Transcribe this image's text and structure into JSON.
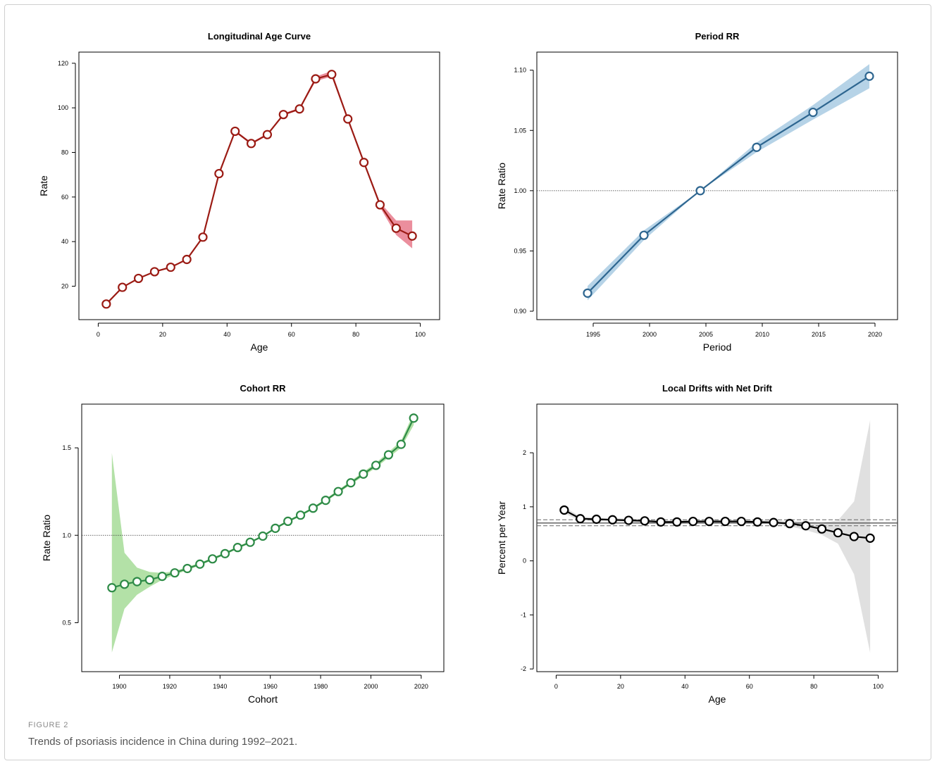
{
  "figure": {
    "label": "FIGURE 2",
    "caption": "Trends of psoriasis incidence in China during 1992–2021."
  },
  "chart_data": [
    {
      "type": "line",
      "title": "Longitudinal Age Curve",
      "xlabel": "Age",
      "ylabel": "Rate",
      "xlim": [
        -6,
        106
      ],
      "ylim": [
        5,
        125
      ],
      "xticks": [
        0,
        20,
        40,
        60,
        80,
        100
      ],
      "yticks": [
        20,
        40,
        60,
        80,
        100,
        120
      ],
      "tick_labels_x": [
        "0",
        "20",
        "40",
        "60",
        "80",
        "100"
      ],
      "tick_labels_y": [
        "20",
        "40",
        "60",
        "80",
        "100",
        "120"
      ],
      "color": "#9b1b14",
      "band_color": "#e87a8c",
      "series": [
        {
          "x": [
            2.5,
            7.5,
            12.5,
            17.5,
            22.5,
            27.5,
            32.5,
            37.5,
            42.5,
            47.5,
            52.5,
            57.5,
            62.5,
            67.5,
            72.5,
            77.5,
            82.5,
            87.5,
            92.5,
            97.5
          ],
          "values": [
            12,
            19.5,
            23.5,
            26.5,
            28.5,
            32,
            42,
            70.5,
            89.5,
            84,
            88,
            97,
            99.5,
            113,
            115,
            95,
            75.5,
            56.5,
            46,
            42.5
          ],
          "lower": [
            12,
            19.3,
            23.2,
            26.2,
            28.2,
            31.7,
            41.6,
            70,
            89,
            83.5,
            87.5,
            96.5,
            99,
            112,
            114,
            94.3,
            74.8,
            55.4,
            43,
            37
          ],
          "upper": [
            12,
            19.7,
            23.8,
            26.8,
            28.8,
            32.3,
            42.4,
            71,
            90,
            84.5,
            88.5,
            97.5,
            100,
            114,
            116.5,
            95.7,
            76.2,
            57.6,
            49.5,
            49.5
          ]
        }
      ]
    },
    {
      "type": "line",
      "title": "Period RR",
      "xlabel": "Period",
      "ylabel": "Rate Ratio",
      "xlim": [
        1990,
        2022
      ],
      "ylim": [
        0.893,
        1.115
      ],
      "xticks": [
        1995,
        2000,
        2005,
        2010,
        2015,
        2020
      ],
      "yticks": [
        0.9,
        0.95,
        1.0,
        1.05,
        1.1
      ],
      "tick_labels_x": [
        "1995",
        "2000",
        "2005",
        "2010",
        "2015",
        "2020"
      ],
      "tick_labels_y": [
        "0.90",
        "0.95",
        "1.00",
        "1.05",
        "1.10"
      ],
      "reference_line": 1.0,
      "color": "#2e6690",
      "band_color": "#a9cbe3",
      "series": [
        {
          "x": [
            1994.5,
            1999.5,
            2004.5,
            2009.5,
            2014.5,
            2019.5
          ],
          "values": [
            0.915,
            0.963,
            1.0,
            1.036,
            1.065,
            1.095
          ],
          "lower": [
            0.909,
            0.959,
            1.0,
            1.032,
            1.059,
            1.085
          ],
          "upper": [
            0.921,
            0.967,
            1.0,
            1.04,
            1.071,
            1.105
          ]
        }
      ]
    },
    {
      "type": "line",
      "title": "Cohort RR",
      "xlabel": "Cohort",
      "ylabel": "Rate Ratio",
      "xlim": [
        1885,
        2029
      ],
      "ylim": [
        0.22,
        1.75
      ],
      "xticks": [
        1900,
        1920,
        1940,
        1960,
        1980,
        2000,
        2020
      ],
      "yticks": [
        0.5,
        1.0,
        1.5
      ],
      "tick_labels_x": [
        "1900",
        "1920",
        "1940",
        "1960",
        "1980",
        "2000",
        "2020"
      ],
      "tick_labels_y": [
        "0.5",
        "1.0",
        "1.5"
      ],
      "reference_line": 1.0,
      "color": "#2e8b47",
      "band_color": "#a6dc98",
      "series": [
        {
          "x": [
            1897,
            1902,
            1907,
            1912,
            1917,
            1922,
            1927,
            1932,
            1937,
            1942,
            1947,
            1952,
            1957,
            1962,
            1967,
            1972,
            1977,
            1982,
            1987,
            1992,
            1997,
            2002,
            2007,
            2012,
            2017
          ],
          "values": [
            0.7,
            0.72,
            0.735,
            0.745,
            0.765,
            0.785,
            0.81,
            0.835,
            0.865,
            0.895,
            0.93,
            0.96,
            0.995,
            1.04,
            1.08,
            1.115,
            1.155,
            1.2,
            1.25,
            1.3,
            1.35,
            1.4,
            1.46,
            1.52,
            1.67
          ],
          "lower": [
            0.33,
            0.58,
            0.66,
            0.705,
            0.745,
            0.775,
            0.8,
            0.828,
            0.858,
            0.888,
            0.923,
            0.954,
            0.99,
            1.034,
            1.073,
            1.108,
            1.148,
            1.192,
            1.241,
            1.29,
            1.338,
            1.386,
            1.444,
            1.5,
            1.63
          ],
          "upper": [
            1.47,
            0.9,
            0.815,
            0.79,
            0.785,
            0.795,
            0.82,
            0.842,
            0.872,
            0.902,
            0.937,
            0.966,
            1.0,
            1.046,
            1.087,
            1.122,
            1.162,
            1.208,
            1.259,
            1.31,
            1.362,
            1.414,
            1.476,
            1.54,
            1.7
          ]
        }
      ]
    },
    {
      "type": "line",
      "title": "Local Drifts with Net Drift",
      "xlabel": "Age",
      "ylabel": "Percent per Year",
      "xlim": [
        -6,
        106
      ],
      "ylim": [
        -2.05,
        2.9
      ],
      "xticks": [
        0,
        20,
        40,
        60,
        80,
        100
      ],
      "yticks": [
        -2,
        -1,
        0,
        1,
        2
      ],
      "tick_labels_x": [
        "0",
        "20",
        "40",
        "60",
        "80",
        "100"
      ],
      "tick_labels_y": [
        "-2",
        "-1",
        "0",
        "1",
        "2"
      ],
      "net_drift": 0.7,
      "net_drift_ci": [
        0.65,
        0.76
      ],
      "color": "#000000",
      "band_color": "#dadada",
      "series": [
        {
          "x": [
            2.5,
            7.5,
            12.5,
            17.5,
            22.5,
            27.5,
            32.5,
            37.5,
            42.5,
            47.5,
            52.5,
            57.5,
            62.5,
            67.5,
            72.5,
            77.5,
            82.5,
            87.5,
            92.5,
            97.5
          ],
          "values": [
            0.94,
            0.78,
            0.77,
            0.76,
            0.75,
            0.74,
            0.72,
            0.72,
            0.73,
            0.73,
            0.73,
            0.73,
            0.72,
            0.71,
            0.69,
            0.65,
            0.59,
            0.52,
            0.45,
            0.42
          ],
          "lower": [
            0.88,
            0.74,
            0.74,
            0.73,
            0.72,
            0.71,
            0.69,
            0.69,
            0.7,
            0.7,
            0.7,
            0.7,
            0.69,
            0.67,
            0.64,
            0.57,
            0.48,
            0.32,
            -0.25,
            -1.7
          ],
          "upper": [
            1.0,
            0.82,
            0.8,
            0.79,
            0.78,
            0.77,
            0.75,
            0.75,
            0.76,
            0.76,
            0.76,
            0.76,
            0.75,
            0.75,
            0.74,
            0.73,
            0.71,
            0.75,
            1.1,
            2.6
          ]
        }
      ]
    }
  ]
}
